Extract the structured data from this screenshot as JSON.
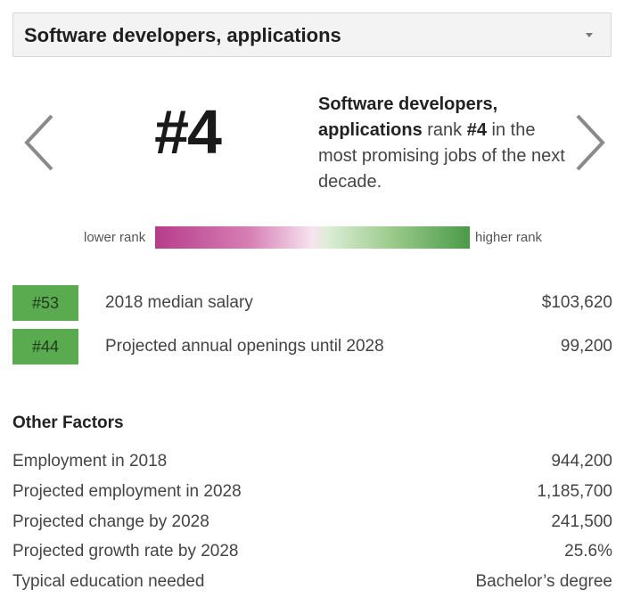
{
  "dropdown": {
    "selected": "Software developers, applications"
  },
  "rank": {
    "big_label": "#4",
    "job_name": "Software developers, applications",
    "text_rank": "rank",
    "rank_value": "#4",
    "text_rest": "in the most promising jobs of the next decade."
  },
  "scale": {
    "low_label": "lower rank",
    "high_label": "higher rank"
  },
  "stats": [
    {
      "badge": "#53",
      "label": "2018 median salary",
      "value": "$103,620"
    },
    {
      "badge": "#44",
      "label": "Projected annual openings until 2028",
      "value": "99,200"
    }
  ],
  "other_factors": {
    "title": "Other Factors",
    "rows": [
      {
        "label": "Employment in 2018",
        "value": "944,200"
      },
      {
        "label": "Projected employment in 2028",
        "value": "1,185,700"
      },
      {
        "label": "Projected change by 2028",
        "value": "241,500"
      },
      {
        "label": "Projected growth rate by 2028",
        "value": "25.6%"
      },
      {
        "label": "Typical education needed",
        "value": "Bachelor’s degree"
      }
    ]
  },
  "colors": {
    "badge": "#5aab50",
    "low": "#b63c8a",
    "high": "#4a9a48"
  },
  "icons": {
    "prev": "chevron-left-icon",
    "next": "chevron-right-icon",
    "caret": "caret-down-icon"
  }
}
